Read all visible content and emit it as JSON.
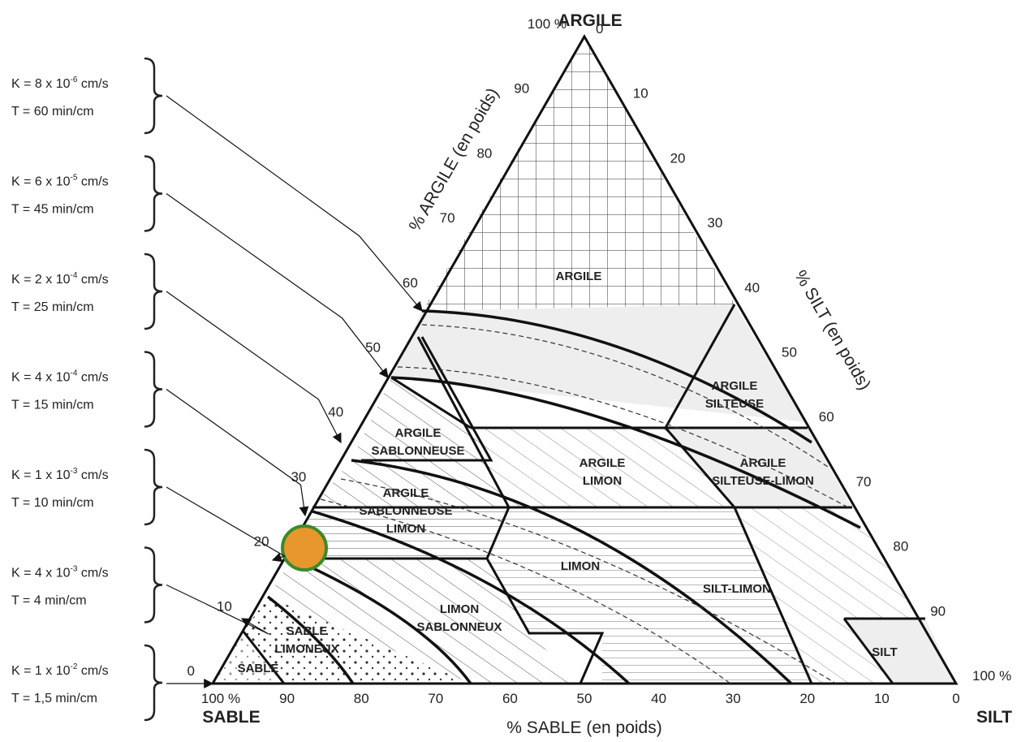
{
  "vertices": {
    "top": "ARGILE",
    "left": "SABLE",
    "right": "SILT"
  },
  "axes": {
    "clay": {
      "title": "% ARGILE (en poids)",
      "ticks": [
        "0",
        "10",
        "20",
        "30",
        "40",
        "50",
        "60",
        "70",
        "80",
        "90",
        "100 %"
      ]
    },
    "silt": {
      "title": "% SILT (en poids)",
      "ticks": [
        "0",
        "10",
        "20",
        "30",
        "40",
        "50",
        "60",
        "70",
        "80",
        "90",
        "100 %"
      ]
    },
    "sand": {
      "title": "% SABLE (en poids)",
      "ticks": [
        "100 %",
        "90",
        "80",
        "70",
        "60",
        "50",
        "40",
        "30",
        "20",
        "10",
        "0"
      ]
    }
  },
  "regions": [
    [
      "ARGILE"
    ],
    [
      "ARGILE",
      "SILTEUSE"
    ],
    [
      "ARGILE",
      "SABLONNEUSE"
    ],
    [
      "ARGILE",
      "LIMON"
    ],
    [
      "ARGILE",
      "SILTEUSE-LIMON"
    ],
    [
      "ARGILE",
      "SABLONNEUSE",
      "LIMON"
    ],
    [
      "LIMON"
    ],
    [
      "SILT-LIMON"
    ],
    [
      "LIMON",
      "SABLONNEUX"
    ],
    [
      "SABLE",
      "LIMONEUX"
    ],
    [
      "SABLE"
    ],
    [
      "SILT"
    ]
  ],
  "permeability": [
    {
      "k": "K = 8 x 10",
      "exp": "-6",
      "unit": " cm/s",
      "t": "T = 60 min/cm"
    },
    {
      "k": "K = 6 x 10",
      "exp": "-5",
      "unit": " cm/s",
      "t": "T = 45 min/cm"
    },
    {
      "k": "K = 2 x 10",
      "exp": "-4",
      "unit": " cm/s",
      "t": "T = 25 min/cm"
    },
    {
      "k": "K = 4 x 10",
      "exp": "-4",
      "unit": " cm/s",
      "t": "T = 15 min/cm"
    },
    {
      "k": "K = 1 x 10",
      "exp": "-3",
      "unit": " cm/s",
      "t": "T = 10 min/cm"
    },
    {
      "k": "K = 4 x 10",
      "exp": "-3",
      "unit": " cm/s",
      "t": "T = 4 min/cm"
    },
    {
      "k": "K = 1 x 10",
      "exp": "-2",
      "unit": " cm/s",
      "t": "T = 1,5 min/cm"
    }
  ]
}
